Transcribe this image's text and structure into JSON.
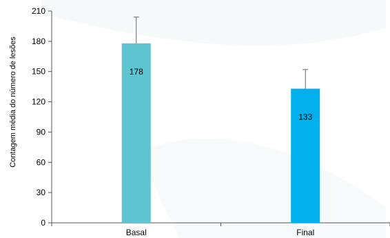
{
  "chart_data": {
    "type": "bar",
    "ylabel": "Contagem média do número de lesões",
    "xlabel": "",
    "ylim": [
      0,
      210
    ],
    "yticks": [
      0,
      30,
      60,
      90,
      120,
      150,
      180,
      210
    ],
    "categories": [
      "Basal",
      "Final"
    ],
    "values": [
      178,
      133
    ],
    "error_upper": [
      26,
      19
    ],
    "bar_colors": [
      "#5ec5d0",
      "#00b0ec"
    ],
    "data_labels": [
      "178",
      "133"
    ],
    "grid": false,
    "legend": "none"
  }
}
